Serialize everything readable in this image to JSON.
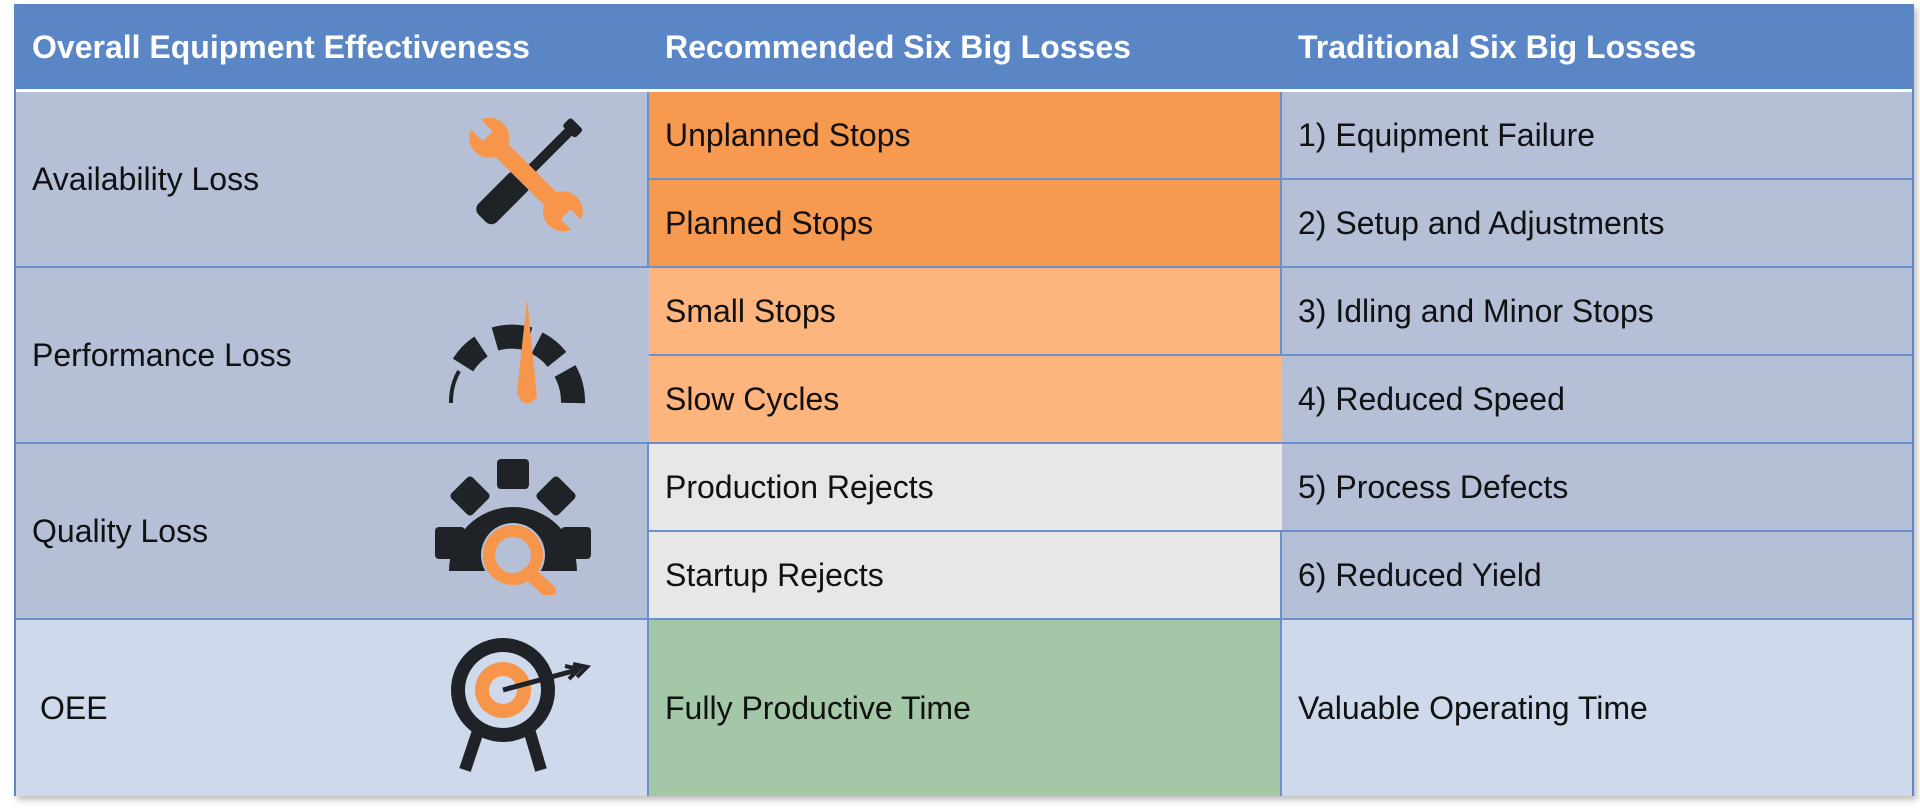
{
  "headers": {
    "col1": "Overall Equipment Effectiveness",
    "col2": "Recommended Six Big Losses",
    "col3": "Traditional Six Big Losses"
  },
  "categories": [
    {
      "label": "Availability Loss",
      "icon": "wrench-screwdriver-icon"
    },
    {
      "label": "Performance Loss",
      "icon": "speedometer-gauge-icon"
    },
    {
      "label": "Quality Loss",
      "icon": "gear-magnifier-icon"
    },
    {
      "label": "OEE",
      "icon": "target-arrow-icon"
    }
  ],
  "recommended": [
    "Unplanned Stops",
    "Planned Stops",
    "Small Stops",
    "Slow Cycles",
    "Production Rejects",
    "Startup Rejects",
    "Fully Productive Time"
  ],
  "traditional": [
    "1) Equipment Failure",
    "2) Setup and Adjustments",
    "3) Idling and Minor Stops",
    "4) Reduced Speed",
    "5) Process Defects",
    "6) Reduced Yield",
    "Valuable Operating Time"
  ],
  "colors": {
    "header": "#5b86c6",
    "availability": "#f79a50",
    "performance": "#fdb57d",
    "quality": "#e7e7e7",
    "oee": "#a3c7a7",
    "category_bg": "#b5bfd6",
    "icon_dark": "#1f2226",
    "icon_accent": "#f7964a"
  }
}
